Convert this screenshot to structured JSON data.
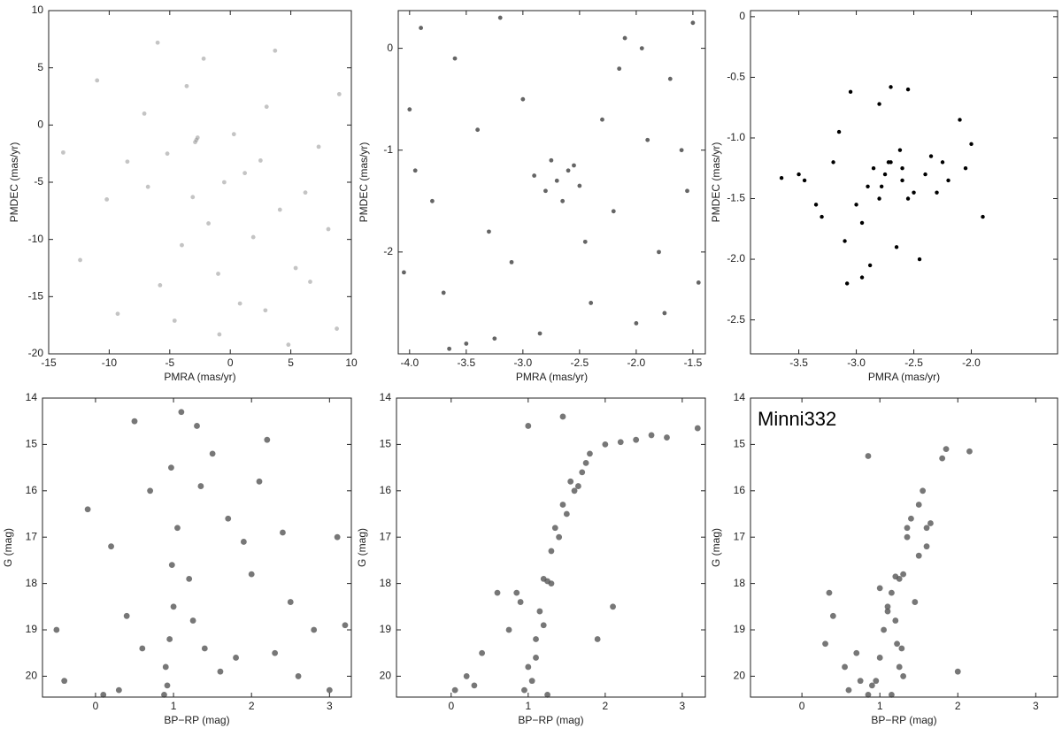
{
  "chart_data": [
    {
      "type": "scatter",
      "xlabel": "PMRA (mas/yr)",
      "ylabel": "PMDEC (mas/yr)",
      "xlim": [
        -15,
        10
      ],
      "ylim": [
        -20,
        10
      ],
      "xticks": [
        -15,
        -10,
        -5,
        0,
        5,
        10
      ],
      "yticks": [
        -20,
        -15,
        -10,
        -5,
        0,
        5,
        10
      ],
      "color": "#8a8a8a",
      "x": [
        -2.8,
        -2.7,
        -2.9,
        -0.5,
        1.2,
        -3.1,
        2.5,
        -5.2,
        4.1,
        -1.8,
        0.3,
        -6.8,
        6.2,
        -4.0,
        3.0,
        -8.5,
        8.1,
        -10.2,
        9.0,
        -12.4,
        -1.0,
        1.9,
        -3.6,
        5.4,
        -7.1,
        0.8,
        -2.2,
        2.9,
        -5.8,
        7.3,
        -9.3,
        3.7,
        -0.9,
        -4.6,
        6.6,
        -13.8,
        -11.0,
        8.8,
        -6.0,
        4.8
      ],
      "values": [
        -1.3,
        -1.1,
        -1.5,
        -5.0,
        -4.2,
        -6.3,
        -3.1,
        -2.5,
        -7.4,
        -8.6,
        -0.8,
        -5.4,
        -5.9,
        -10.5,
        1.6,
        -3.2,
        -9.1,
        -6.5,
        2.7,
        -11.8,
        -13.0,
        -9.8,
        3.4,
        -12.5,
        1.0,
        -15.6,
        5.8,
        -16.2,
        -14.0,
        -1.9,
        -16.5,
        6.5,
        -18.3,
        -17.1,
        -13.7,
        -2.4,
        3.9,
        -17.8,
        7.2,
        -19.2
      ]
    },
    {
      "type": "scatter",
      "xlabel": "PMRA (mas/yr)",
      "ylabel": "PMDEC (mas/yr)",
      "xlim": [
        -4.1,
        -1.39
      ],
      "ylim": [
        -3.0,
        0.37
      ],
      "xticks": [
        {
          "value": -4,
          "label": "-4.0"
        },
        -3.5,
        {
          "value": -3,
          "label": "-3.0"
        },
        -2.5,
        {
          "value": -2,
          "label": "-2.0"
        },
        -1.5
      ],
      "yticks": [
        -2,
        -1,
        0
      ],
      "color": "#4a4a4a",
      "x": [
        -2.7,
        -2.6,
        -2.8,
        -2.5,
        -2.9,
        -2.65,
        -2.55,
        -2.75,
        -3.9,
        -3.6,
        -3.2,
        -2.1,
        -1.7,
        -1.5,
        -4.0,
        -3.4,
        -3.0,
        -2.3,
        -1.9,
        -1.6,
        -3.8,
        -3.3,
        -2.2,
        -1.8,
        -4.05,
        -3.7,
        -3.1,
        -2.4,
        -2.0,
        -1.45,
        -3.5,
        -2.85,
        -1.55,
        -3.95,
        -2.45,
        -1.75,
        -3.25,
        -2.15,
        -3.65,
        -1.95
      ],
      "values": [
        -1.3,
        -1.2,
        -1.4,
        -1.35,
        -1.25,
        -1.5,
        -1.15,
        -1.1,
        0.2,
        -0.1,
        0.3,
        0.1,
        -0.3,
        0.25,
        -0.6,
        -0.8,
        -0.5,
        -0.7,
        -0.9,
        -1.0,
        -1.5,
        -1.8,
        -1.6,
        -2.0,
        -2.2,
        -2.4,
        -2.1,
        -2.5,
        -2.7,
        -2.3,
        -2.9,
        -2.8,
        -1.4,
        -1.2,
        -1.9,
        -2.6,
        -2.85,
        -0.2,
        -2.95,
        0.0
      ]
    },
    {
      "type": "scatter",
      "xlabel": "PMRA (mas/yr)",
      "ylabel": "PMDEC (mas/yr)",
      "xlim": [
        -3.92,
        -1.25
      ],
      "ylim": [
        -2.78,
        0.05
      ],
      "xticks": [
        -3.5,
        {
          "value": -3,
          "label": "-3.0"
        },
        -2.5,
        {
          "value": -2,
          "label": "-2.0"
        }
      ],
      "yticks": [
        -2.5,
        {
          "value": -2,
          "label": "-2.0"
        },
        -1.5,
        {
          "value": -1,
          "label": "-1.0"
        },
        -0.5,
        0
      ],
      "color": "#000000",
      "x": [
        -3.65,
        -3.5,
        -3.45,
        -3.35,
        -3.3,
        -3.2,
        -3.15,
        -3.05,
        -3.0,
        -2.95,
        -2.9,
        -2.85,
        -2.8,
        -2.75,
        -2.7,
        -2.65,
        -2.6,
        -2.55,
        -2.5,
        -2.45,
        -2.4,
        -2.35,
        -2.3,
        -2.25,
        -2.2,
        -2.1,
        -2.05,
        -2.0,
        -1.9,
        -3.1,
        -2.95,
        -2.8,
        -2.7,
        -2.6,
        -2.78,
        -2.72,
        -2.62,
        -3.08,
        -2.88,
        -2.55
      ],
      "values": [
        -1.33,
        -1.3,
        -1.35,
        -1.55,
        -1.65,
        -1.2,
        -0.95,
        -0.62,
        -1.55,
        -2.15,
        -1.4,
        -1.25,
        -0.72,
        -1.3,
        -0.58,
        -1.9,
        -1.25,
        -0.6,
        -1.45,
        -2.0,
        -1.3,
        -1.15,
        -1.45,
        -1.2,
        -1.35,
        -0.85,
        -1.25,
        -1.05,
        -1.65,
        -1.85,
        -1.7,
        -1.5,
        -1.2,
        -1.35,
        -1.4,
        -1.2,
        -1.1,
        -2.2,
        -2.05,
        -1.5
      ]
    },
    {
      "type": "scatter",
      "xlabel": "BP−RP (mag)",
      "ylabel": "G (mag)",
      "xlim": [
        -0.68,
        3.28
      ],
      "ylim": [
        14,
        20.45
      ],
      "y_inverted": true,
      "xticks": [
        0,
        1,
        2,
        3
      ],
      "yticks": [
        14,
        15,
        16,
        17,
        18,
        19,
        20
      ],
      "color": "#555555",
      "x": [
        0.9,
        0.95,
        1.0,
        0.92,
        0.98,
        1.05,
        0.88,
        0.97,
        1.2,
        1.3,
        1.25,
        1.4,
        1.6,
        1.8,
        2.0,
        2.3,
        2.6,
        3.0,
        3.2,
        0.6,
        0.4,
        0.2,
        -0.1,
        -0.4,
        0.7,
        1.5,
        1.7,
        2.1,
        2.5,
        2.8,
        0.5,
        0.3,
        1.1,
        1.35,
        1.9,
        2.4,
        3.1,
        -0.5,
        0.1,
        2.2
      ],
      "values": [
        19.8,
        19.2,
        18.5,
        20.2,
        17.6,
        16.8,
        20.4,
        15.5,
        17.9,
        14.6,
        18.8,
        19.4,
        19.9,
        19.6,
        17.8,
        19.5,
        20.0,
        20.3,
        18.9,
        19.4,
        18.7,
        17.2,
        16.4,
        20.1,
        16.0,
        15.2,
        16.6,
        15.8,
        18.4,
        19.0,
        14.5,
        20.3,
        14.3,
        15.9,
        17.1,
        16.9,
        17.0,
        19.0,
        20.4,
        14.9
      ]
    },
    {
      "type": "scatter",
      "xlabel": "BP−RP (mag)",
      "ylabel": "G (mag)",
      "xlim": [
        -0.71,
        3.3
      ],
      "ylim": [
        14,
        20.45
      ],
      "y_inverted": true,
      "xticks": [
        0,
        1,
        2,
        3
      ],
      "yticks": [
        14,
        15,
        16,
        17,
        18,
        19,
        20
      ],
      "color": "#555555",
      "x": [
        1.2,
        1.25,
        1.3,
        1.15,
        1.1,
        1.0,
        0.95,
        1.05,
        1.4,
        1.5,
        1.6,
        1.7,
        1.8,
        2.0,
        2.4,
        2.8,
        3.2,
        0.6,
        0.4,
        0.2,
        0.05,
        1.3,
        1.55,
        1.45,
        1.35,
        1.2,
        0.9,
        1.75,
        2.2,
        0.75,
        1.1,
        1.65,
        2.6,
        0.3,
        1.9,
        0.85,
        1.45,
        1.0,
        2.1,
        1.25
      ],
      "values": [
        17.9,
        17.95,
        18.0,
        18.6,
        19.2,
        19.8,
        20.3,
        20.1,
        17.0,
        16.5,
        16.0,
        15.6,
        15.2,
        15.0,
        14.9,
        14.85,
        14.65,
        18.2,
        19.5,
        20.0,
        20.3,
        17.3,
        15.8,
        16.3,
        16.8,
        18.9,
        18.4,
        15.4,
        14.95,
        19.0,
        19.6,
        15.9,
        14.8,
        20.2,
        19.2,
        18.2,
        14.4,
        14.6,
        18.5,
        20.4
      ]
    },
    {
      "type": "scatter",
      "xlabel": "BP−RP (mag)",
      "ylabel": "G (mag)",
      "annotation": "Minni332",
      "xlim": [
        -0.66,
        3.28
      ],
      "ylim": [
        14,
        20.45
      ],
      "y_inverted": true,
      "xticks": [
        0,
        1,
        2,
        3
      ],
      "yticks": [
        14,
        15,
        16,
        17,
        18,
        19,
        20
      ],
      "color": "#555555",
      "x": [
        1.2,
        1.25,
        1.3,
        1.22,
        1.28,
        1.15,
        1.1,
        1.05,
        1.0,
        0.95,
        0.9,
        0.85,
        1.35,
        1.4,
        1.5,
        1.55,
        1.6,
        1.65,
        1.8,
        1.85,
        2.15,
        0.35,
        0.3,
        0.4,
        0.55,
        0.6,
        0.7,
        1.25,
        1.3,
        1.2,
        1.45,
        0.85,
        1.0,
        1.1,
        2.0,
        1.5,
        1.35,
        1.15,
        0.75,
        1.6
      ],
      "values": [
        17.85,
        17.9,
        17.8,
        19.3,
        19.4,
        18.2,
        18.6,
        19.0,
        19.6,
        20.1,
        20.2,
        20.4,
        17.0,
        16.6,
        16.3,
        16.0,
        16.8,
        16.7,
        15.3,
        15.1,
        15.15,
        18.2,
        19.3,
        18.7,
        19.8,
        20.3,
        19.5,
        19.8,
        20.0,
        18.8,
        18.4,
        15.25,
        18.1,
        18.5,
        19.9,
        17.4,
        16.8,
        20.4,
        20.1,
        17.2
      ]
    }
  ]
}
